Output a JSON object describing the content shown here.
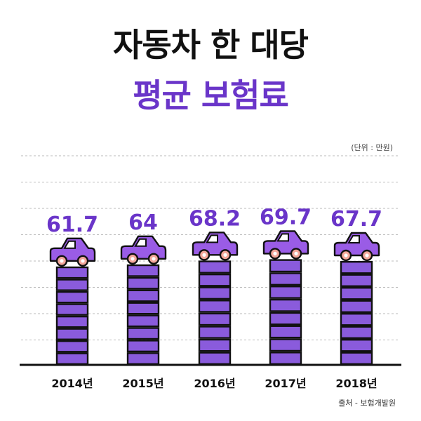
{
  "title": {
    "line1": "자동차 한 대당",
    "line2": "평균 보험료"
  },
  "unit_note": "(단위 : 만원)",
  "source_note": "출처 - 보험개발원",
  "colors": {
    "accent": "#6a35c9",
    "brick": "#8a5bdc",
    "car": "#9a5ce6",
    "outline": "#111111",
    "wheel": "#f4a79a",
    "grid": "#bbbbbb"
  },
  "chart_data": {
    "type": "bar",
    "categories": [
      "2014년",
      "2015년",
      "2016년",
      "2017년",
      "2018년"
    ],
    "values": [
      61.7,
      64,
      68.2,
      69.7,
      67.7
    ],
    "value_labels": [
      "61.7",
      "64",
      "68.2",
      "69.7",
      "67.7"
    ],
    "title": "자동차 한 대당 평균 보험료",
    "unit": "(단위 : 만원)",
    "grid": true
  }
}
